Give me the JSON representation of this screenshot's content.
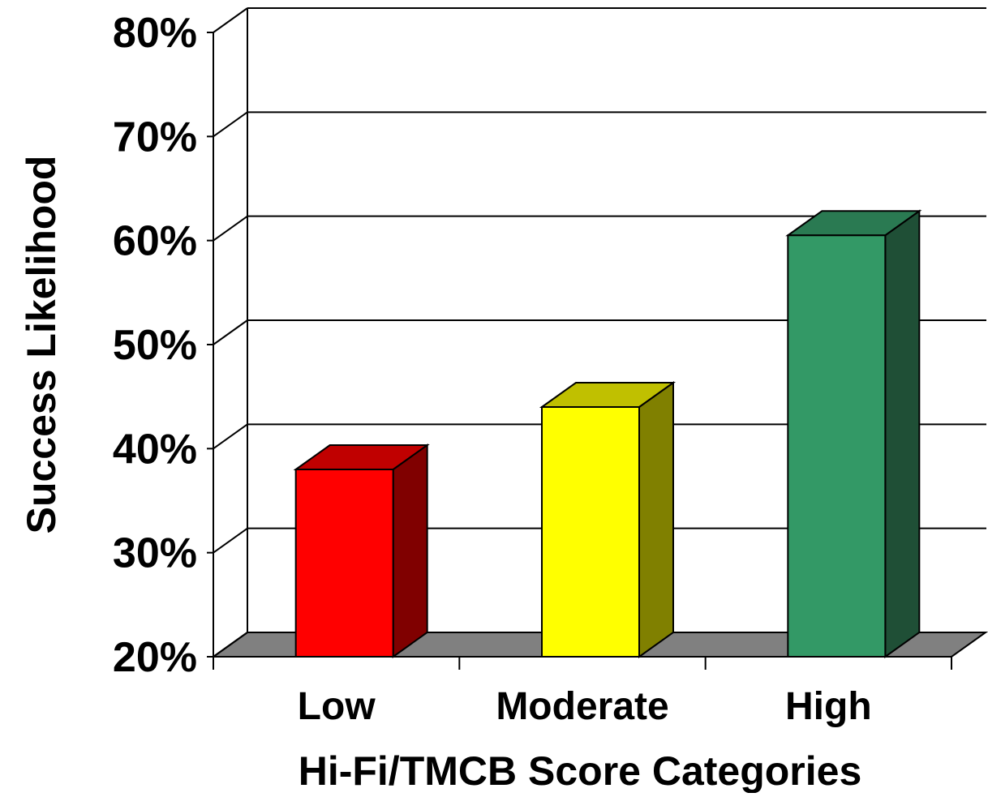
{
  "chart_data": {
    "type": "bar",
    "style": "3d",
    "categories": [
      "Low",
      "Moderate",
      "High"
    ],
    "values": [
      38,
      44,
      60.5
    ],
    "value_unit": "%",
    "ylim": [
      20,
      80
    ],
    "ytick_values": [
      20,
      30,
      40,
      50,
      60,
      70,
      80
    ],
    "ytick_labels": [
      "20%",
      "30%",
      "40%",
      "50%",
      "60%",
      "70%",
      "80%"
    ],
    "xlabel": "Hi-Fi/TMCB Score Categories",
    "ylabel": "Success  Likelihood",
    "grid": true,
    "legend": "none",
    "colors": {
      "front": [
        "#ff0000",
        "#ffff00",
        "#339966"
      ],
      "top": [
        "#c00000",
        "#c0c000",
        "#2a7a52"
      ],
      "side": [
        "#800000",
        "#808000",
        "#1f4f36"
      ],
      "floor": "#808080"
    }
  }
}
